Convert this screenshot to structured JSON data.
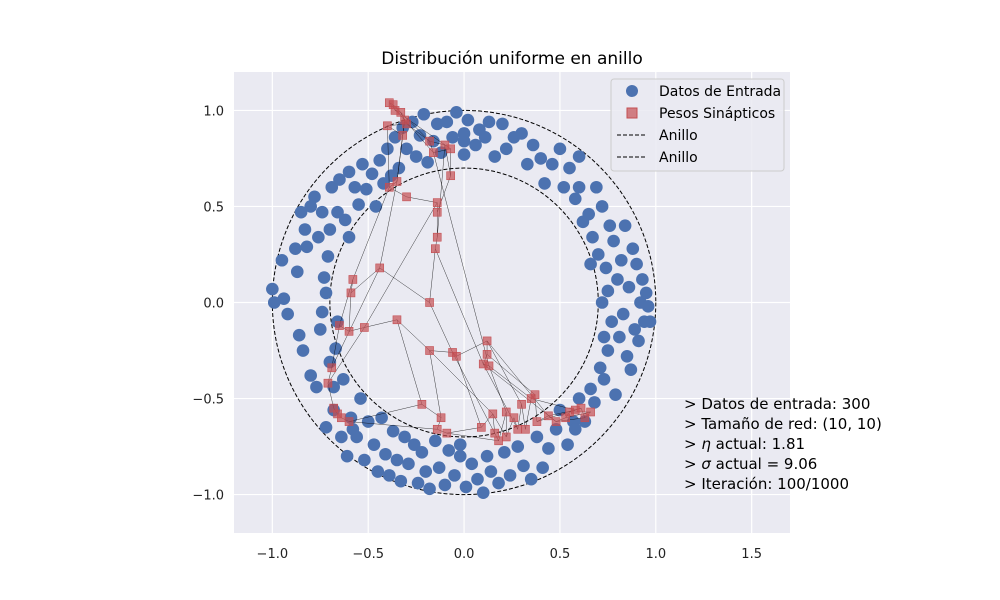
{
  "chart_data": {
    "type": "scatter",
    "title": "Distribución uniforme en anillo",
    "xlabel": "",
    "ylabel": "",
    "xlim": [
      -1.2,
      1.7
    ],
    "ylim": [
      -1.2,
      1.2
    ],
    "xticks": [
      -1.0,
      -0.5,
      0.0,
      0.5,
      1.0,
      1.5
    ],
    "yticks": [
      -1.0,
      -0.5,
      0.0,
      0.5,
      1.0
    ],
    "xtick_labels": [
      "−1.0",
      "−0.5",
      "0.0",
      "0.5",
      "1.0",
      "1.5"
    ],
    "ytick_labels": [
      "−1.0",
      "−0.5",
      "0.0",
      "0.5",
      "1.0"
    ],
    "grid": true,
    "background": "#eaeaf2",
    "legend": {
      "placement": "top-right",
      "entries": [
        {
          "label": "Datos de Entrada",
          "marker": "circle",
          "color": "#4c72b0"
        },
        {
          "label": "Pesos Sinápticos",
          "marker": "square",
          "color": "#c44e52"
        },
        {
          "label": "Anillo",
          "marker": "dashed-line",
          "color": "#000000"
        },
        {
          "label": "Anillo",
          "marker": "dashed-line",
          "color": "#000000"
        }
      ]
    },
    "ring": {
      "inner_radius": 0.7,
      "outer_radius": 1.0
    },
    "input_points": [
      [
        -1.0,
        0.07
      ],
      [
        -0.99,
        0.0
      ],
      [
        -0.95,
        0.22
      ],
      [
        -0.94,
        0.02
      ],
      [
        -0.92,
        -0.06
      ],
      [
        -0.88,
        0.28
      ],
      [
        -0.87,
        0.16
      ],
      [
        -0.86,
        -0.17
      ],
      [
        -0.85,
        0.47
      ],
      [
        -0.84,
        -0.25
      ],
      [
        -0.83,
        0.38
      ],
      [
        -0.82,
        0.29
      ],
      [
        -0.8,
        -0.38
      ],
      [
        -0.8,
        0.5
      ],
      [
        -0.78,
        0.55
      ],
      [
        -0.77,
        -0.44
      ],
      [
        -0.76,
        0.34
      ],
      [
        -0.75,
        -0.14
      ],
      [
        -0.74,
        0.47
      ],
      [
        -0.73,
        0.13
      ],
      [
        -0.72,
        -0.65
      ],
      [
        -0.71,
        0.24
      ],
      [
        -0.7,
        -0.31
      ],
      [
        -0.69,
        0.6
      ],
      [
        -0.68,
        -0.56
      ],
      [
        -0.67,
        -0.24
      ],
      [
        -0.66,
        0.47
      ],
      [
        -0.65,
        0.64
      ],
      [
        -0.64,
        -0.7
      ],
      [
        -0.63,
        -0.4
      ],
      [
        -0.62,
        0.43
      ],
      [
        -0.61,
        -0.8
      ],
      [
        -0.6,
        0.34
      ],
      [
        -0.59,
        -0.6
      ],
      [
        -0.57,
        0.6
      ],
      [
        -0.56,
        -0.7
      ],
      [
        -0.55,
        0.51
      ],
      [
        -0.54,
        -0.5
      ],
      [
        -0.53,
        0.72
      ],
      [
        -0.52,
        -0.82
      ],
      [
        -0.51,
        0.59
      ],
      [
        -0.5,
        -0.62
      ],
      [
        -0.48,
        0.67
      ],
      [
        -0.47,
        -0.74
      ],
      [
        -0.46,
        0.5
      ],
      [
        -0.45,
        -0.88
      ],
      [
        -0.44,
        0.74
      ],
      [
        -0.43,
        -0.6
      ],
      [
        -0.42,
        0.62
      ],
      [
        -0.41,
        -0.79
      ],
      [
        -0.4,
        0.8
      ],
      [
        -0.39,
        -0.9
      ],
      [
        -0.38,
        0.66
      ],
      [
        -0.37,
        -0.67
      ],
      [
        -0.36,
        0.86
      ],
      [
        -0.35,
        -0.82
      ],
      [
        -0.34,
        0.7
      ],
      [
        -0.33,
        -0.93
      ],
      [
        -0.32,
        0.91
      ],
      [
        -0.31,
        -0.7
      ],
      [
        -0.3,
        0.8
      ],
      [
        -0.29,
        -0.84
      ],
      [
        -0.27,
        0.94
      ],
      [
        -0.26,
        -0.74
      ],
      [
        -0.25,
        0.76
      ],
      [
        -0.24,
        -0.94
      ],
      [
        -0.23,
        0.87
      ],
      [
        -0.22,
        -0.78
      ],
      [
        -0.21,
        0.98
      ],
      [
        -0.2,
        -0.88
      ],
      [
        -0.19,
        0.73
      ],
      [
        -0.18,
        -0.97
      ],
      [
        -0.16,
        0.84
      ],
      [
        -0.15,
        -0.72
      ],
      [
        -0.14,
        0.93
      ],
      [
        -0.13,
        -0.86
      ],
      [
        -0.12,
        0.78
      ],
      [
        -0.1,
        -0.95
      ],
      [
        -0.09,
        0.94
      ],
      [
        -0.08,
        -0.77
      ],
      [
        -0.06,
        0.86
      ],
      [
        -0.05,
        -0.9
      ],
      [
        -0.04,
        0.99
      ],
      [
        -0.02,
        -0.8
      ],
      [
        0.0,
        0.88
      ],
      [
        0.01,
        -0.96
      ],
      [
        0.02,
        0.95
      ],
      [
        0.04,
        -0.84
      ],
      [
        0.06,
        0.82
      ],
      [
        0.07,
        -0.92
      ],
      [
        0.08,
        0.9
      ],
      [
        0.1,
        -0.99
      ],
      [
        0.11,
        0.86
      ],
      [
        0.12,
        -0.8
      ],
      [
        0.13,
        0.94
      ],
      [
        0.14,
        -0.88
      ],
      [
        0.16,
        0.76
      ],
      [
        0.18,
        -0.94
      ],
      [
        0.2,
        0.93
      ],
      [
        0.21,
        -0.78
      ],
      [
        0.22,
        0.8
      ],
      [
        0.24,
        -0.9
      ],
      [
        0.26,
        0.86
      ],
      [
        0.28,
        -0.75
      ],
      [
        0.3,
        0.88
      ],
      [
        0.31,
        -0.85
      ],
      [
        0.33,
        0.72
      ],
      [
        0.35,
        -0.92
      ],
      [
        0.36,
        0.82
      ],
      [
        0.38,
        -0.7
      ],
      [
        0.4,
        0.75
      ],
      [
        0.41,
        -0.86
      ],
      [
        0.42,
        0.62
      ],
      [
        0.44,
        -0.76
      ],
      [
        0.46,
        0.72
      ],
      [
        0.48,
        -0.66
      ],
      [
        0.5,
        0.8
      ],
      [
        0.5,
        -0.56
      ],
      [
        0.52,
        0.6
      ],
      [
        0.54,
        -0.74
      ],
      [
        0.55,
        0.7
      ],
      [
        0.57,
        -0.62
      ],
      [
        0.58,
        0.54
      ],
      [
        0.6,
        -0.5
      ],
      [
        0.6,
        0.76
      ],
      [
        0.62,
        0.42
      ],
      [
        0.63,
        -0.62
      ],
      [
        0.65,
        0.46
      ],
      [
        0.66,
        -0.45
      ],
      [
        0.67,
        0.34
      ],
      [
        0.68,
        -0.52
      ],
      [
        0.69,
        0.6
      ],
      [
        0.7,
        0.25
      ],
      [
        0.71,
        -0.34
      ],
      [
        0.72,
        0.5
      ],
      [
        0.73,
        -0.4
      ],
      [
        0.74,
        0.18
      ],
      [
        0.75,
        -0.25
      ],
      [
        0.76,
        0.4
      ],
      [
        0.77,
        -0.1
      ],
      [
        0.78,
        0.32
      ],
      [
        0.79,
        -0.48
      ],
      [
        0.8,
        0.12
      ],
      [
        0.81,
        -0.18
      ],
      [
        0.82,
        0.22
      ],
      [
        0.83,
        -0.06
      ],
      [
        0.84,
        0.4
      ],
      [
        0.85,
        -0.28
      ],
      [
        0.86,
        0.08
      ],
      [
        0.87,
        -0.35
      ],
      [
        0.88,
        0.28
      ],
      [
        0.89,
        -0.14
      ],
      [
        0.9,
        0.2
      ],
      [
        0.91,
        -0.2
      ],
      [
        0.92,
        0.0
      ],
      [
        0.93,
        0.12
      ],
      [
        0.94,
        -0.1
      ],
      [
        0.95,
        0.05
      ],
      [
        0.96,
        -0.02
      ],
      [
        0.97,
        -0.1
      ],
      [
        0.72,
        0.0
      ],
      [
        0.75,
        0.06
      ],
      [
        0.73,
        -0.18
      ],
      [
        -0.72,
        0.05
      ],
      [
        -0.74,
        -0.05
      ],
      [
        -0.7,
        0.38
      ],
      [
        -0.68,
        -0.44
      ],
      [
        0.0,
        0.77
      ],
      [
        -0.02,
        -0.74
      ],
      [
        0.6,
        0.6
      ],
      [
        -0.6,
        0.68
      ],
      [
        -0.58,
        -0.66
      ],
      [
        0.58,
        -0.66
      ],
      [
        0.0,
        0.84
      ],
      [
        0.66,
        0.2
      ],
      [
        -0.66,
        -0.1
      ]
    ],
    "weight_nodes": [
      [
        -0.39,
        1.04
      ],
      [
        -0.37,
        1.03
      ],
      [
        -0.36,
        1.0
      ],
      [
        -0.33,
        0.99
      ],
      [
        -0.31,
        0.95
      ],
      [
        -0.32,
        0.87
      ],
      [
        -0.4,
        0.92
      ],
      [
        -0.3,
        0.93
      ],
      [
        -0.18,
        0.84
      ],
      [
        -0.16,
        0.78
      ],
      [
        -0.07,
        0.8
      ],
      [
        -0.07,
        0.66
      ],
      [
        -0.1,
        0.82
      ],
      [
        -0.35,
        0.63
      ],
      [
        -0.39,
        0.6
      ],
      [
        -0.3,
        0.55
      ],
      [
        -0.14,
        0.52
      ],
      [
        -0.14,
        0.47
      ],
      [
        -0.14,
        0.34
      ],
      [
        -0.15,
        0.28
      ],
      [
        -0.58,
        0.12
      ],
      [
        -0.59,
        0.05
      ],
      [
        -0.44,
        0.18
      ],
      [
        -0.18,
        0.0
      ],
      [
        -0.6,
        -0.15
      ],
      [
        -0.65,
        -0.12
      ],
      [
        -0.52,
        -0.13
      ],
      [
        -0.35,
        -0.09
      ],
      [
        -0.18,
        -0.25
      ],
      [
        -0.06,
        -0.26
      ],
      [
        -0.04,
        -0.28
      ],
      [
        0.12,
        -0.2
      ],
      [
        0.12,
        -0.27
      ],
      [
        0.1,
        -0.32
      ],
      [
        0.13,
        -0.33
      ],
      [
        -0.69,
        -0.34
      ],
      [
        -0.71,
        -0.42
      ],
      [
        -0.68,
        -0.55
      ],
      [
        -0.66,
        -0.58
      ],
      [
        -0.64,
        -0.6
      ],
      [
        -0.6,
        -0.62
      ],
      [
        -0.22,
        -0.53
      ],
      [
        -0.12,
        -0.6
      ],
      [
        -0.14,
        -0.66
      ],
      [
        -0.09,
        -0.68
      ],
      [
        0.09,
        -0.65
      ],
      [
        0.15,
        -0.58
      ],
      [
        0.16,
        -0.68
      ],
      [
        0.18,
        -0.72
      ],
      [
        0.22,
        -0.57
      ],
      [
        0.22,
        -0.7
      ],
      [
        0.26,
        -0.6
      ],
      [
        0.28,
        -0.66
      ],
      [
        0.3,
        -0.53
      ],
      [
        0.32,
        -0.66
      ],
      [
        0.35,
        -0.5
      ],
      [
        0.37,
        -0.48
      ],
      [
        0.38,
        -0.62
      ],
      [
        0.44,
        -0.59
      ],
      [
        0.48,
        -0.62
      ],
      [
        0.53,
        -0.6
      ],
      [
        0.55,
        -0.57
      ],
      [
        0.58,
        -0.56
      ],
      [
        0.61,
        -0.55
      ],
      [
        0.63,
        -0.6
      ],
      [
        0.66,
        -0.57
      ]
    ],
    "weight_edges": [
      [
        0,
        1
      ],
      [
        1,
        2
      ],
      [
        2,
        3
      ],
      [
        3,
        4
      ],
      [
        4,
        5
      ],
      [
        5,
        6
      ],
      [
        6,
        7
      ],
      [
        3,
        7
      ],
      [
        7,
        8
      ],
      [
        8,
        9
      ],
      [
        9,
        10
      ],
      [
        10,
        11
      ],
      [
        11,
        12
      ],
      [
        8,
        12
      ],
      [
        5,
        13
      ],
      [
        13,
        14
      ],
      [
        14,
        15
      ],
      [
        15,
        16
      ],
      [
        16,
        17
      ],
      [
        17,
        18
      ],
      [
        18,
        19
      ],
      [
        14,
        20
      ],
      [
        20,
        21
      ],
      [
        21,
        22
      ],
      [
        22,
        23
      ],
      [
        19,
        23
      ],
      [
        12,
        18
      ],
      [
        13,
        22
      ],
      [
        21,
        24
      ],
      [
        24,
        25
      ],
      [
        24,
        26
      ],
      [
        26,
        27
      ],
      [
        27,
        28
      ],
      [
        28,
        29
      ],
      [
        29,
        30
      ],
      [
        23,
        29
      ],
      [
        30,
        31
      ],
      [
        31,
        32
      ],
      [
        32,
        33
      ],
      [
        33,
        34
      ],
      [
        19,
        33
      ],
      [
        9,
        34
      ],
      [
        25,
        35
      ],
      [
        35,
        36
      ],
      [
        36,
        37
      ],
      [
        37,
        38
      ],
      [
        38,
        39
      ],
      [
        39,
        40
      ],
      [
        40,
        41
      ],
      [
        41,
        42
      ],
      [
        42,
        43
      ],
      [
        43,
        44
      ],
      [
        44,
        45
      ],
      [
        45,
        46
      ],
      [
        46,
        47
      ],
      [
        47,
        48
      ],
      [
        48,
        49
      ],
      [
        49,
        50
      ],
      [
        50,
        51
      ],
      [
        51,
        52
      ],
      [
        52,
        53
      ],
      [
        53,
        54
      ],
      [
        54,
        55
      ],
      [
        55,
        56
      ],
      [
        56,
        57
      ],
      [
        57,
        58
      ],
      [
        58,
        59
      ],
      [
        59,
        60
      ],
      [
        60,
        61
      ],
      [
        61,
        62
      ],
      [
        62,
        63
      ],
      [
        63,
        64
      ],
      [
        64,
        65
      ],
      [
        34,
        49
      ],
      [
        31,
        53
      ],
      [
        32,
        56
      ],
      [
        30,
        45
      ],
      [
        28,
        42
      ],
      [
        27,
        41
      ],
      [
        26,
        36
      ],
      [
        44,
        48
      ],
      [
        46,
        50
      ],
      [
        2,
        10
      ],
      [
        6,
        14
      ],
      [
        4,
        13
      ],
      [
        57,
        63
      ],
      [
        60,
        65
      ],
      [
        55,
        62
      ],
      [
        22,
        35
      ],
      [
        16,
        26
      ],
      [
        11,
        17
      ],
      [
        33,
        52
      ],
      [
        29,
        47
      ],
      [
        0,
        9
      ],
      [
        1,
        8
      ],
      [
        20,
        25
      ],
      [
        40,
        43
      ],
      [
        34,
        55
      ],
      [
        31,
        58
      ],
      [
        33,
        59
      ],
      [
        28,
        46
      ],
      [
        59,
        64
      ],
      [
        61,
        65
      ],
      [
        58,
        62
      ]
    ]
  },
  "info": {
    "line1": "> Datos de entrada: 300",
    "line2": "> Tamaño de red: (10, 10)",
    "line3_prefix": "> ",
    "line3_symbol": "η",
    "line3_suffix": " actual: 1.81",
    "line4_prefix": "> ",
    "line4_symbol": "σ",
    "line4_suffix": " actual = 9.06",
    "line5": "> Iteración: 100/1000"
  },
  "colors": {
    "input_color": "#4c72b0",
    "weight_color": "#c44e52",
    "edge_color": "#000000",
    "grid_color": "#ffffff",
    "axes_bg": "#eaeaf2"
  }
}
